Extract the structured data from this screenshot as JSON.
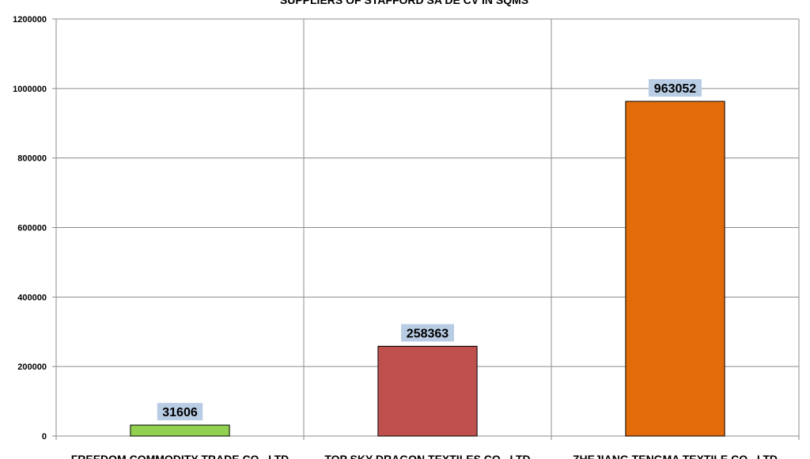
{
  "chart_data": {
    "type": "bar",
    "title": "SUPPLIERS OF STAFFORD SA DE CV IN SQMS",
    "categories": [
      "FREEDOM COMMODITY TRADE CO., LTD",
      "TOP SKY DRAGON TEXTILES CO., LTD",
      "ZHEJIANG TENGMA TEXTILE CO., LTD"
    ],
    "values": [
      31606,
      258363,
      963052
    ],
    "data_labels": [
      "31606",
      "258363",
      "963052"
    ],
    "colors": [
      "#92D050",
      "#C0504D",
      "#E36C0A"
    ],
    "label_bg": "#B8CCE4",
    "yticks": [
      "0",
      "200000",
      "400000",
      "600000",
      "800000",
      "1000000",
      "1200000"
    ],
    "ylim": [
      0,
      1200000
    ],
    "xlabel": "",
    "ylabel": "",
    "grid": true,
    "legend": "none"
  }
}
